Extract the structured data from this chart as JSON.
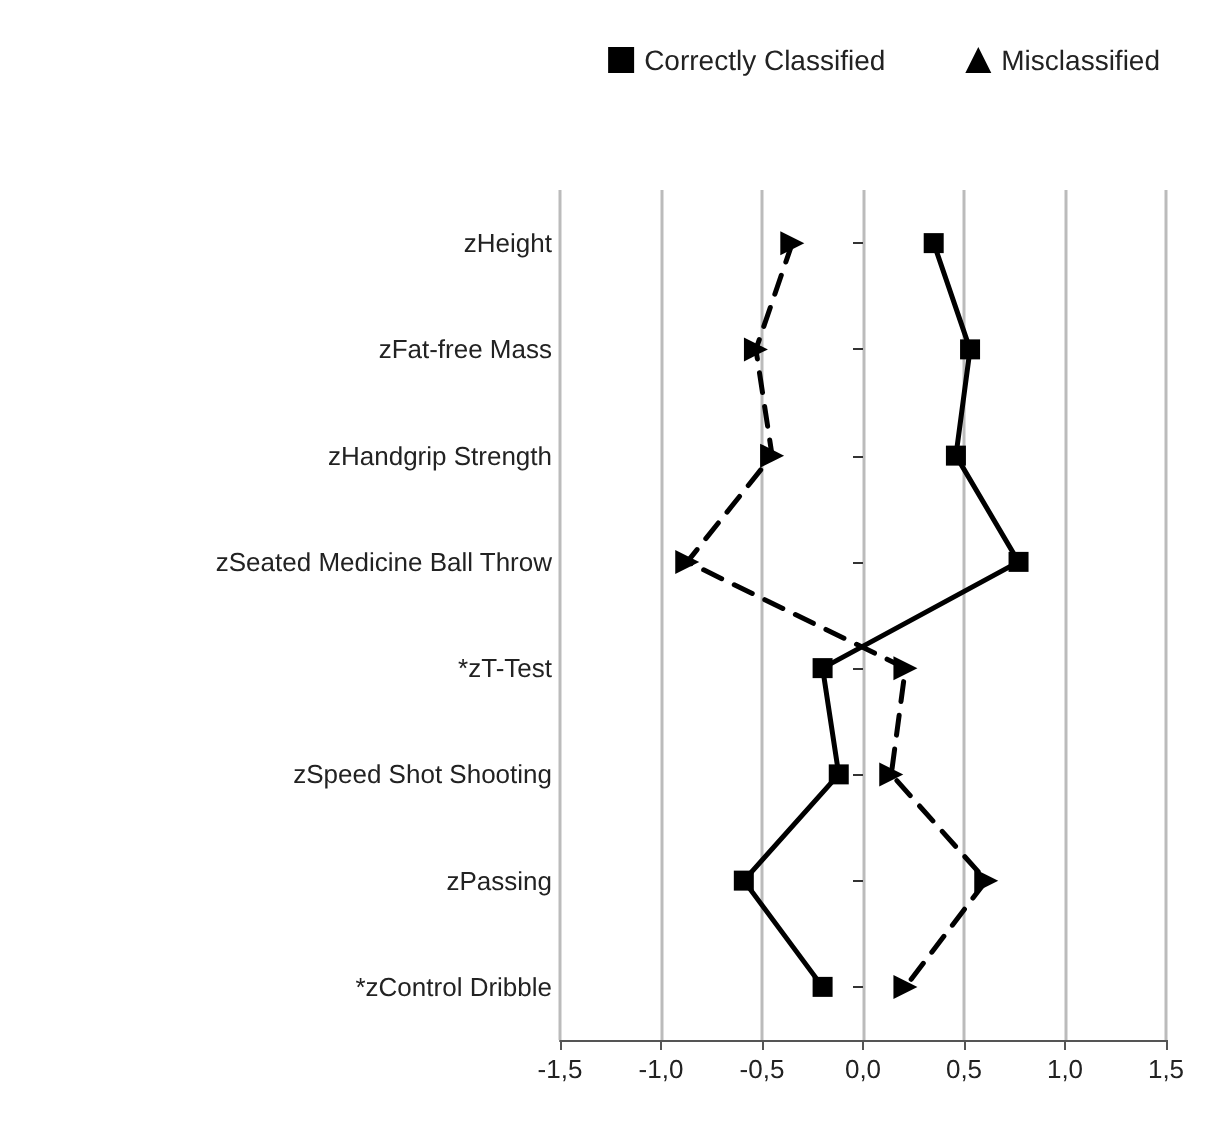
{
  "chart_data": {
    "type": "line",
    "orientation": "horizontal",
    "categories": [
      "zHeight",
      "zFat-free Mass",
      "zHandgrip Strength",
      "zSeated Medicine Ball Throw",
      "*zT-Test",
      "zSpeed Shot Shooting",
      "zPassing",
      "*zControl Dribble"
    ],
    "series": [
      {
        "name": "Correctly Classified",
        "color": "#000000",
        "marker": "square",
        "line_style": "solid",
        "values": [
          0.35,
          0.53,
          0.46,
          0.77,
          -0.2,
          -0.12,
          -0.59,
          -0.2
        ]
      },
      {
        "name": "Misclassified",
        "color": "#000000",
        "marker": "triangle",
        "line_style": "dashed",
        "values": [
          -0.35,
          -0.53,
          -0.45,
          -0.87,
          0.21,
          0.14,
          0.61,
          0.21
        ]
      }
    ],
    "xlim": [
      -1.5,
      1.5
    ],
    "xticks": [
      {
        "value": -1.5,
        "label": "-1,5"
      },
      {
        "value": -1,
        "label": "-1,0"
      },
      {
        "value": -0.5,
        "label": "-0,5"
      },
      {
        "value": 0,
        "label": "0,0"
      },
      {
        "value": 0.5,
        "label": "0,5"
      },
      {
        "value": 1,
        "label": "1,0"
      },
      {
        "value": 1.5,
        "label": "1,5"
      }
    ],
    "grid": "x",
    "legend": "top right"
  }
}
